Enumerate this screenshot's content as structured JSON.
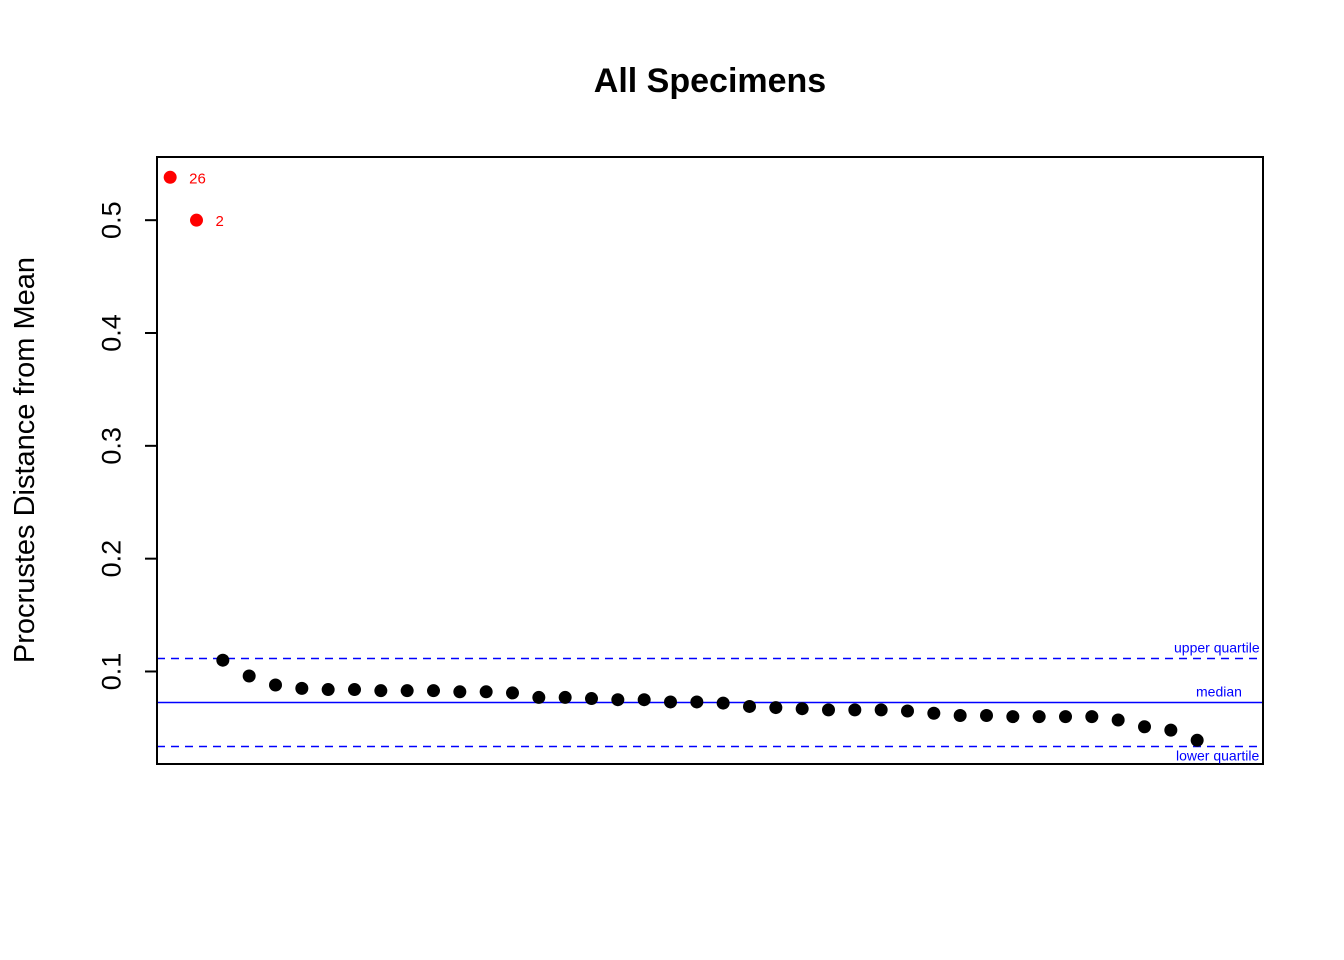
{
  "chart_data": {
    "type": "scatter",
    "title": "All Specimens",
    "xlabel": "",
    "ylabel": "Procrustes Distance from Mean",
    "xlim": [
      0.5,
      42.5
    ],
    "ylim": [
      0.018,
      0.556
    ],
    "yticks": [
      0.1,
      0.2,
      0.3,
      0.4,
      0.5
    ],
    "yticklabels": [
      "0.1",
      "0.2",
      "0.3",
      "0.4",
      "0.5"
    ],
    "x_axis_shown": false,
    "grid": false,
    "colors": {
      "outlier": "#ff0000",
      "point": "#000000",
      "reference": "#0000ff"
    },
    "outliers": [
      {
        "x": 1,
        "y": 0.538,
        "label": "26"
      },
      {
        "x": 2,
        "y": 0.5,
        "label": "2"
      }
    ],
    "points": [
      {
        "x": 3,
        "y": 0.11
      },
      {
        "x": 4,
        "y": 0.096
      },
      {
        "x": 5,
        "y": 0.088
      },
      {
        "x": 6,
        "y": 0.085
      },
      {
        "x": 7,
        "y": 0.084
      },
      {
        "x": 8,
        "y": 0.084
      },
      {
        "x": 9,
        "y": 0.083
      },
      {
        "x": 10,
        "y": 0.083
      },
      {
        "x": 11,
        "y": 0.083
      },
      {
        "x": 12,
        "y": 0.082
      },
      {
        "x": 13,
        "y": 0.082
      },
      {
        "x": 14,
        "y": 0.081
      },
      {
        "x": 15,
        "y": 0.077
      },
      {
        "x": 16,
        "y": 0.077
      },
      {
        "x": 17,
        "y": 0.076
      },
      {
        "x": 18,
        "y": 0.075
      },
      {
        "x": 19,
        "y": 0.075
      },
      {
        "x": 20,
        "y": 0.073
      },
      {
        "x": 21,
        "y": 0.073
      },
      {
        "x": 22,
        "y": 0.072
      },
      {
        "x": 23,
        "y": 0.069
      },
      {
        "x": 24,
        "y": 0.068
      },
      {
        "x": 25,
        "y": 0.067
      },
      {
        "x": 26,
        "y": 0.066
      },
      {
        "x": 27,
        "y": 0.066
      },
      {
        "x": 28,
        "y": 0.066
      },
      {
        "x": 29,
        "y": 0.065
      },
      {
        "x": 30,
        "y": 0.063
      },
      {
        "x": 31,
        "y": 0.061
      },
      {
        "x": 32,
        "y": 0.061
      },
      {
        "x": 33,
        "y": 0.06
      },
      {
        "x": 34,
        "y": 0.06
      },
      {
        "x": 35,
        "y": 0.06
      },
      {
        "x": 36,
        "y": 0.06
      },
      {
        "x": 37,
        "y": 0.057
      },
      {
        "x": 38,
        "y": 0.051
      },
      {
        "x": 39,
        "y": 0.048
      },
      {
        "x": 40,
        "y": 0.039
      }
    ],
    "reference_lines": [
      {
        "name": "upper-quartile",
        "label": "upper quartile",
        "y": 0.1115,
        "style": "dashed"
      },
      {
        "name": "median",
        "label": "median",
        "y": 0.0725,
        "style": "solid"
      },
      {
        "name": "lower-quartile",
        "label": "lower quartile",
        "y": 0.0335,
        "style": "dashed"
      }
    ]
  }
}
